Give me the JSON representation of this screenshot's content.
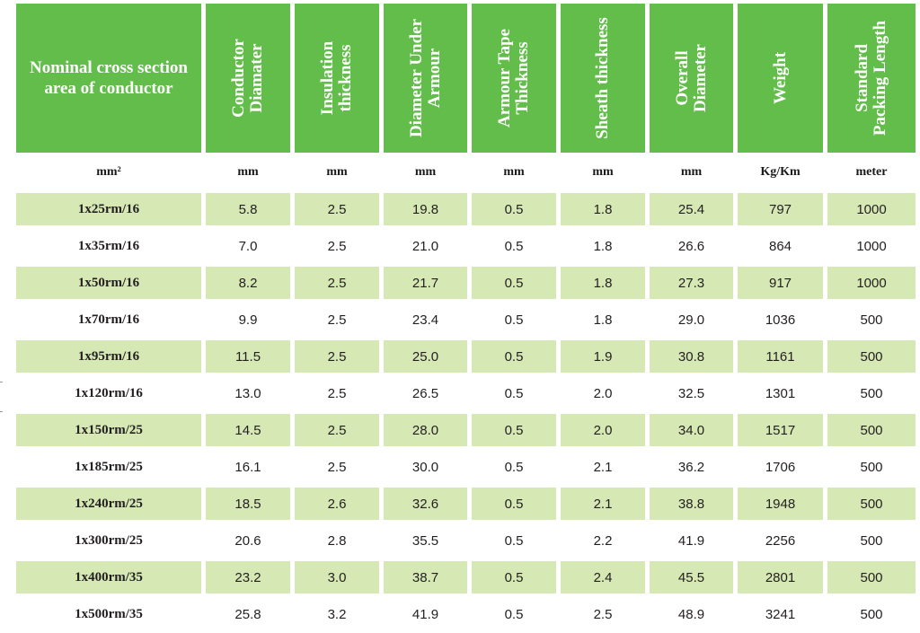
{
  "table": {
    "headers": [
      "Nominal cross section area of conductor",
      "Conductor\nDiamater",
      "Insulation\nthickness",
      "Diameter Under\nArmour",
      "Armour Tape\nThickness",
      "Sheath thickness",
      "Overall\nDiameter",
      "Weight",
      "Standard\nPacking Length"
    ],
    "units": [
      "mm²",
      "mm",
      "mm",
      "mm",
      "mm",
      "mm",
      "mm",
      "Kg/Km",
      "meter"
    ],
    "rows": [
      [
        "1x25rm/16",
        "5.8",
        "2.5",
        "19.8",
        "0.5",
        "1.8",
        "25.4",
        "797",
        "1000"
      ],
      [
        "1x35rm/16",
        "7.0",
        "2.5",
        "21.0",
        "0.5",
        "1.8",
        "26.6",
        "864",
        "1000"
      ],
      [
        "1x50rm/16",
        "8.2",
        "2.5",
        "21.7",
        "0.5",
        "1.8",
        "27.3",
        "917",
        "1000"
      ],
      [
        "1x70rm/16",
        "9.9",
        "2.5",
        "23.4",
        "0.5",
        "1.8",
        "29.0",
        "1036",
        "500"
      ],
      [
        "1x95rm/16",
        "11.5",
        "2.5",
        "25.0",
        "0.5",
        "1.9",
        "30.8",
        "1161",
        "500"
      ],
      [
        "1x120rm/16",
        "13.0",
        "2.5",
        "26.5",
        "0.5",
        "2.0",
        "32.5",
        "1301",
        "500"
      ],
      [
        "1x150rm/25",
        "14.5",
        "2.5",
        "28.0",
        "0.5",
        "2.0",
        "34.0",
        "1517",
        "500"
      ],
      [
        "1x185rm/25",
        "16.1",
        "2.5",
        "30.0",
        "0.5",
        "2.1",
        "36.2",
        "1706",
        "500"
      ],
      [
        "1x240rm/25",
        "18.5",
        "2.6",
        "32.6",
        "0.5",
        "2.1",
        "38.8",
        "1948",
        "500"
      ],
      [
        "1x300rm/25",
        "20.6",
        "2.8",
        "35.5",
        "0.5",
        "2.2",
        "41.9",
        "2256",
        "500"
      ],
      [
        "1x400rm/35",
        "23.2",
        "3.0",
        "38.7",
        "0.5",
        "2.4",
        "45.5",
        "2801",
        "500"
      ],
      [
        "1x500rm/35",
        "25.8",
        "3.2",
        "41.9",
        "0.5",
        "2.5",
        "48.9",
        "3241",
        "500"
      ]
    ]
  },
  "colors": {
    "header_bg": "#62bd4a",
    "header_text": "#ffffff",
    "stripe_bg": "#d6e8b4"
  }
}
